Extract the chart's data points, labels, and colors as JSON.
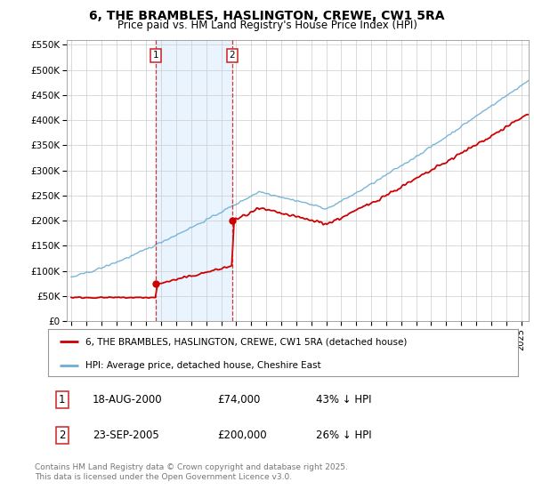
{
  "title": "6, THE BRAMBLES, HASLINGTON, CREWE, CW1 5RA",
  "subtitle": "Price paid vs. HM Land Registry's House Price Index (HPI)",
  "title_fontsize": 10,
  "subtitle_fontsize": 8.5,
  "background_color": "#ffffff",
  "plot_bg_color": "#ffffff",
  "grid_color": "#cccccc",
  "hpi_color": "#6baed6",
  "price_color": "#cc0000",
  "dashed_color": "#cc2222",
  "shade_color": "#ddeeff",
  "ylim": [
    0,
    560000
  ],
  "yticks": [
    0,
    50000,
    100000,
    150000,
    200000,
    250000,
    300000,
    350000,
    400000,
    450000,
    500000,
    550000
  ],
  "ytick_labels": [
    "£0",
    "£50K",
    "£100K",
    "£150K",
    "£200K",
    "£250K",
    "£300K",
    "£350K",
    "£400K",
    "£450K",
    "£500K",
    "£550K"
  ],
  "xlim_start": 1994.7,
  "xlim_end": 2025.5,
  "xticks": [
    1995,
    1996,
    1997,
    1998,
    1999,
    2000,
    2001,
    2002,
    2003,
    2004,
    2005,
    2006,
    2007,
    2008,
    2009,
    2010,
    2011,
    2012,
    2013,
    2014,
    2015,
    2016,
    2017,
    2018,
    2019,
    2020,
    2021,
    2022,
    2023,
    2024,
    2025
  ],
  "legend_label_price": "6, THE BRAMBLES, HASLINGTON, CREWE, CW1 5RA (detached house)",
  "legend_label_hpi": "HPI: Average price, detached house, Cheshire East",
  "transaction1_date": 2000.63,
  "transaction1_price": 74000,
  "transaction2_date": 2005.73,
  "transaction2_price": 200000,
  "footer_line1": "Contains HM Land Registry data © Crown copyright and database right 2025.",
  "footer_line2": "This data is licensed under the Open Government Licence v3.0.",
  "table_row1": [
    "1",
    "18-AUG-2000",
    "£74,000",
    "43% ↓ HPI"
  ],
  "table_row2": [
    "2",
    "23-SEP-2005",
    "£200,000",
    "26% ↓ HPI"
  ]
}
